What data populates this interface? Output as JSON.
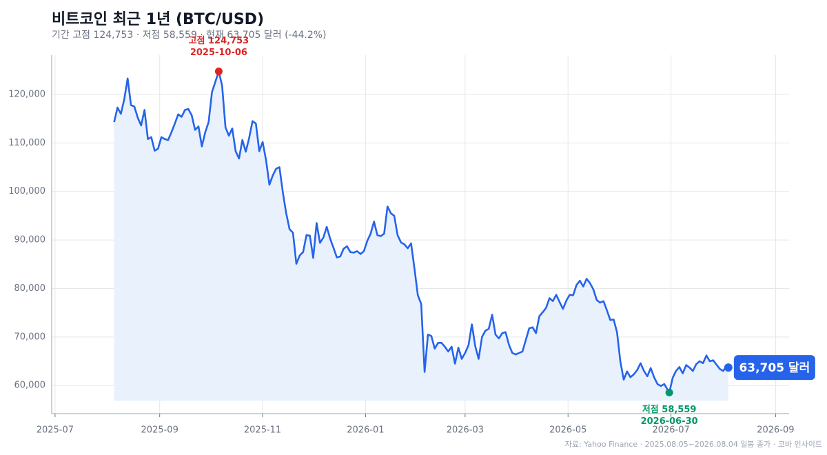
{
  "chart_data": {
    "type": "line",
    "title": "비트코인 최근 1년 (BTC/USD)",
    "subtitle": "기간 고점 124,753 · 저점 58,559 · 현재 63,705 달러 (-44.2%)",
    "source": "자료: Yahoo Finance · 2025.08.05~2026.08.04 일봉 종가 · 코바 인사이트",
    "color": "#2563eb",
    "area_color": "#e8f1fc",
    "grid": true,
    "x": [
      "2025-08-05",
      "2025-08-07",
      "2025-08-09",
      "2025-08-11",
      "2025-08-13",
      "2025-08-15",
      "2025-08-17",
      "2025-08-19",
      "2025-08-21",
      "2025-08-23",
      "2025-08-25",
      "2025-08-27",
      "2025-08-29",
      "2025-08-31",
      "2025-09-02",
      "2025-09-04",
      "2025-09-06",
      "2025-09-08",
      "2025-09-10",
      "2025-09-12",
      "2025-09-14",
      "2025-09-16",
      "2025-09-18",
      "2025-09-20",
      "2025-09-22",
      "2025-09-24",
      "2025-09-26",
      "2025-09-28",
      "2025-09-30",
      "2025-10-02",
      "2025-10-04",
      "2025-10-06",
      "2025-10-08",
      "2025-10-10",
      "2025-10-12",
      "2025-10-14",
      "2025-10-16",
      "2025-10-18",
      "2025-10-20",
      "2025-10-22",
      "2025-10-24",
      "2025-10-26",
      "2025-10-28",
      "2025-10-30",
      "2025-11-01",
      "2025-11-03",
      "2025-11-05",
      "2025-11-07",
      "2025-11-09",
      "2025-11-11",
      "2025-11-13",
      "2025-11-15",
      "2025-11-17",
      "2025-11-19",
      "2025-11-21",
      "2025-11-23",
      "2025-11-25",
      "2025-11-27",
      "2025-11-29",
      "2025-12-01",
      "2025-12-03",
      "2025-12-05",
      "2025-12-07",
      "2025-12-09",
      "2025-12-11",
      "2025-12-13",
      "2025-12-15",
      "2025-12-17",
      "2025-12-19",
      "2025-12-21",
      "2025-12-23",
      "2025-12-25",
      "2025-12-27",
      "2025-12-29",
      "2025-12-31",
      "2026-01-02",
      "2026-01-04",
      "2026-01-06",
      "2026-01-08",
      "2026-01-10",
      "2026-01-12",
      "2026-01-14",
      "2026-01-16",
      "2026-01-18",
      "2026-01-20",
      "2026-01-22",
      "2026-01-24",
      "2026-01-26",
      "2026-01-28",
      "2026-01-30",
      "2026-02-01",
      "2026-02-03",
      "2026-02-05",
      "2026-02-07",
      "2026-02-09",
      "2026-02-11",
      "2026-02-13",
      "2026-02-15",
      "2026-02-17",
      "2026-02-19",
      "2026-02-21",
      "2026-02-23",
      "2026-02-25",
      "2026-02-27",
      "2026-03-01",
      "2026-03-03",
      "2026-03-05",
      "2026-03-07",
      "2026-03-09",
      "2026-03-11",
      "2026-03-13",
      "2026-03-15",
      "2026-03-17",
      "2026-03-19",
      "2026-03-21",
      "2026-03-23",
      "2026-03-25",
      "2026-03-27",
      "2026-03-29",
      "2026-03-31",
      "2026-04-02",
      "2026-04-04",
      "2026-04-06",
      "2026-04-08",
      "2026-04-10",
      "2026-04-12",
      "2026-04-14",
      "2026-04-16",
      "2026-04-18",
      "2026-04-20",
      "2026-04-22",
      "2026-04-24",
      "2026-04-26",
      "2026-04-28",
      "2026-04-30",
      "2026-05-02",
      "2026-05-04",
      "2026-05-06",
      "2026-05-08",
      "2026-05-10",
      "2026-05-12",
      "2026-05-14",
      "2026-05-16",
      "2026-05-18",
      "2026-05-20",
      "2026-05-22",
      "2026-05-24",
      "2026-05-26",
      "2026-05-28",
      "2026-05-30",
      "2026-06-01",
      "2026-06-03",
      "2026-06-05",
      "2026-06-07",
      "2026-06-09",
      "2026-06-11",
      "2026-06-13",
      "2026-06-15",
      "2026-06-17",
      "2026-06-19",
      "2026-06-21",
      "2026-06-23",
      "2026-06-25",
      "2026-06-27",
      "2026-06-30",
      "2026-07-02",
      "2026-07-04",
      "2026-07-06",
      "2026-07-08",
      "2026-07-10",
      "2026-07-12",
      "2026-07-14",
      "2026-07-16",
      "2026-07-18",
      "2026-07-20",
      "2026-07-22",
      "2026-07-24",
      "2026-07-26",
      "2026-07-28",
      "2026-07-30",
      "2026-08-01",
      "2026-08-03",
      "2026-08-04"
    ],
    "values": [
      114300,
      117300,
      116000,
      119000,
      123300,
      117800,
      117500,
      115200,
      113600,
      116800,
      110800,
      111200,
      108400,
      108800,
      111200,
      110800,
      110600,
      112200,
      114000,
      115900,
      115400,
      116800,
      117000,
      115700,
      112700,
      113400,
      109300,
      112200,
      114300,
      120500,
      122600,
      124753,
      121800,
      113200,
      111500,
      113000,
      108300,
      106800,
      110600,
      108200,
      111000,
      114500,
      114000,
      108300,
      110200,
      106500,
      101400,
      103300,
      104700,
      105000,
      99800,
      95500,
      92200,
      91500,
      85100,
      86800,
      87500,
      91000,
      90900,
      86300,
      93500,
      89400,
      90500,
      92700,
      90300,
      88400,
      86400,
      86600,
      88200,
      88700,
      87500,
      87400,
      87700,
      87100,
      87700,
      89800,
      91300,
      93800,
      91000,
      90800,
      91300,
      96900,
      95500,
      95000,
      91000,
      89500,
      89100,
      88300,
      89300,
      84100,
      78600,
      76800,
      62800,
      70500,
      70200,
      67600,
      68800,
      68800,
      68000,
      67000,
      68000,
      64500,
      67800,
      65500,
      66700,
      68300,
      72600,
      68100,
      65500,
      70000,
      71300,
      71700,
      74600,
      70500,
      69700,
      70800,
      71000,
      68400,
      66700,
      66400,
      66700,
      67000,
      69400,
      71800,
      72000,
      70800,
      74300,
      75100,
      76000,
      78000,
      77400,
      78700,
      77200,
      75800,
      77500,
      78700,
      78600,
      80700,
      81600,
      80400,
      82000,
      81100,
      79800,
      77600,
      77100,
      77400,
      75500,
      73500,
      73600,
      71000,
      65000,
      61200,
      62900,
      61700,
      62300,
      63200,
      64600,
      63000,
      61900,
      63600,
      61700,
      60300,
      59900,
      60300,
      58559,
      61600,
      63000,
      63800,
      62500,
      64200,
      63700,
      63000,
      64400,
      65000,
      64600,
      66200,
      65000,
      65200,
      64300,
      63400,
      63000,
      64200,
      63705
    ],
    "xlim": [
      "2025-06-29",
      "2026-09-09"
    ],
    "xticks": [
      {
        "value": "2025-07-01",
        "label": "2025-07"
      },
      {
        "value": "2025-09-01",
        "label": "2025-09"
      },
      {
        "value": "2025-11-01",
        "label": "2025-11"
      },
      {
        "value": "2026-01-01",
        "label": "2026-01"
      },
      {
        "value": "2026-03-01",
        "label": "2026-03"
      },
      {
        "value": "2026-05-01",
        "label": "2026-05"
      },
      {
        "value": "2026-07-01",
        "label": "2026-07"
      },
      {
        "value": "2026-09-01",
        "label": "2026-09"
      }
    ],
    "ylim": [
      54200,
      128100
    ],
    "yticks": [
      {
        "value": 60000,
        "label": "60,000"
      },
      {
        "value": 70000,
        "label": "70,000"
      },
      {
        "value": 80000,
        "label": "80,000"
      },
      {
        "value": 90000,
        "label": "90,000"
      },
      {
        "value": 100000,
        "label": "100,000"
      },
      {
        "value": 110000,
        "label": "110,000"
      },
      {
        "value": 120000,
        "label": "120,000"
      }
    ],
    "annotations": [
      {
        "text": "고점 124,753",
        "date": "2025-10-06",
        "color": "#dc2626",
        "position": "above"
      },
      {
        "text": "저점 58,559",
        "date": "2026-06-30",
        "color": "#059669",
        "position": "below"
      }
    ],
    "end_label": "63,705 달러"
  }
}
